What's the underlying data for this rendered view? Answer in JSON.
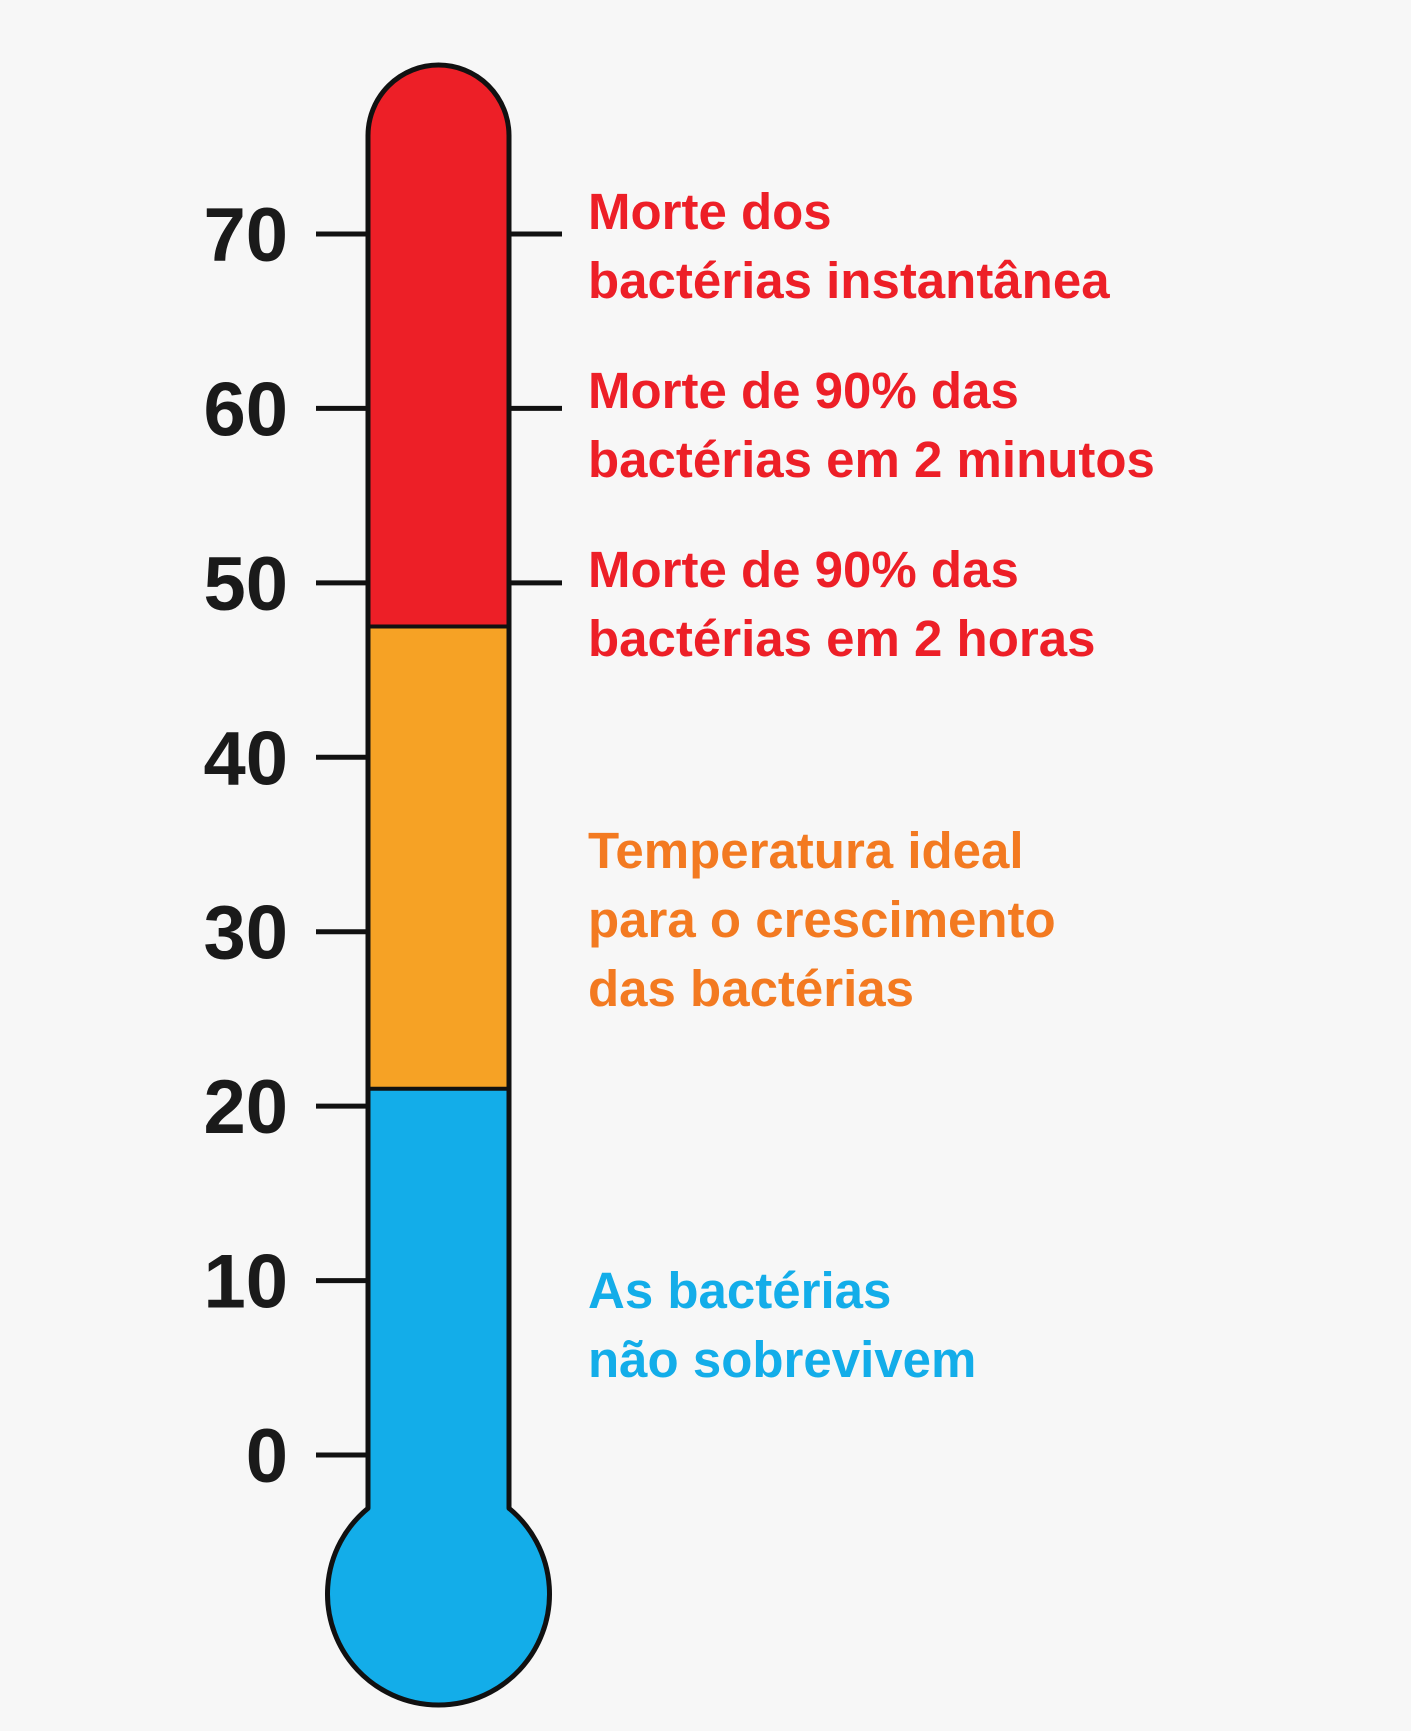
{
  "thermometer": {
    "scale": {
      "ticks": [
        0,
        10,
        20,
        30,
        40,
        50,
        60,
        70
      ],
      "right_ticks": [
        50,
        60,
        70
      ]
    },
    "zones": [
      {
        "name": "cold",
        "from": -8,
        "to": 21,
        "color": "#13ade9"
      },
      {
        "name": "growth",
        "from": 21,
        "to": 47.5,
        "color": "#f6a225"
      },
      {
        "name": "death",
        "from": 47.5,
        "to": 78,
        "color": "#ed1f27"
      }
    ],
    "outline_color": "#111111"
  },
  "annotations": [
    {
      "id": "instant-death",
      "lines": [
        "Morte dos",
        "bactérias instantânea"
      ],
      "color": "#ed1f27"
    },
    {
      "id": "death-2-minutes",
      "lines": [
        "Morte de 90% das",
        "bactérias em 2 minutos"
      ],
      "color": "#ed1f27"
    },
    {
      "id": "death-2-hours",
      "lines": [
        "Morte de 90% das",
        "bactérias em 2 horas"
      ],
      "color": "#ed1f27"
    },
    {
      "id": "ideal-growth",
      "lines": [
        "Temperatura ideal",
        "para o crescimento",
        "das bactérias"
      ],
      "color": "#f37a21"
    },
    {
      "id": "no-survival",
      "lines": [
        "As bactérias",
        "não sobrevivem"
      ],
      "color": "#13ade9"
    }
  ]
}
